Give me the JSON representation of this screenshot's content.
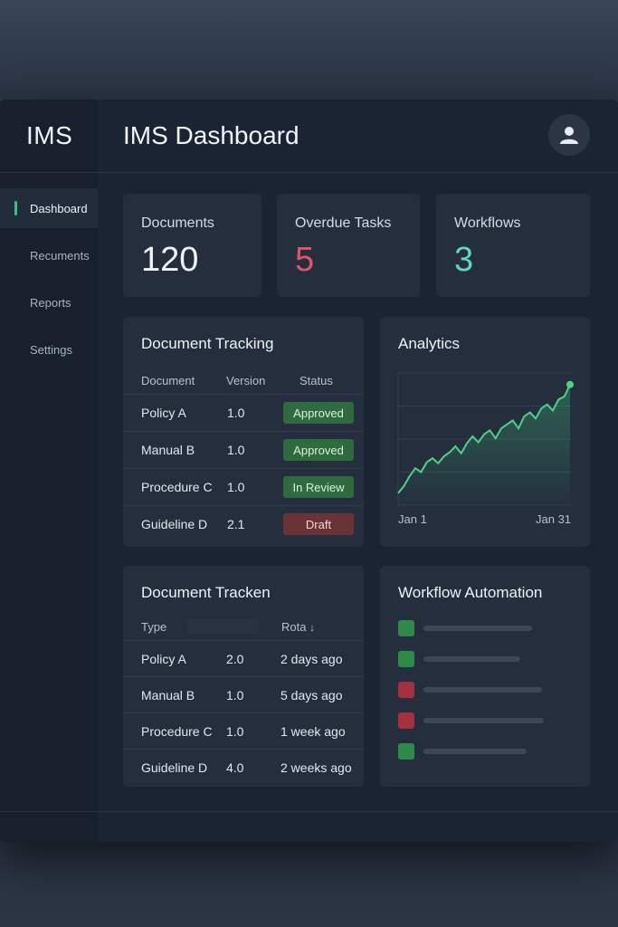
{
  "app": {
    "brand": "IMS",
    "title": "IMS Dashboard"
  },
  "icons": {
    "avatar": "user-icon",
    "sort": "arrow-down-icon"
  },
  "sidebar": {
    "items": [
      {
        "label": "Dashboard",
        "active": true
      },
      {
        "label": "Recuments",
        "active": false
      },
      {
        "label": "Reports",
        "active": false
      },
      {
        "label": "Settings",
        "active": false
      }
    ]
  },
  "stats": [
    {
      "label": "Documents",
      "value": "120",
      "color": "#f2f5f9"
    },
    {
      "label": "Overdue Tasks",
      "value": "5",
      "color": "#e0556a"
    },
    {
      "label": "Workflows",
      "value": "3",
      "color": "#5fd6c0"
    }
  ],
  "tracking": {
    "title": "Document Tracking",
    "columns": [
      "Document",
      "Version",
      "Status"
    ],
    "rows": [
      {
        "document": "Policy A",
        "version": "1.0",
        "status": "Approved",
        "status_color": "#2f6b3f",
        "status_text": "#d9f2df"
      },
      {
        "document": "Manual B",
        "version": "1.0",
        "status": "Approved",
        "status_color": "#2f6b3f",
        "status_text": "#d9f2df"
      },
      {
        "document": "Procedure C",
        "version": "1.0",
        "status": "In Review",
        "status_color": "#2f6b3f",
        "status_text": "#d9f2df"
      },
      {
        "document": "Guideline D",
        "version": "2.1",
        "status": "Draft",
        "status_color": "#6a3336",
        "status_text": "#f1d6d8"
      }
    ]
  },
  "analytics": {
    "title": "Analytics",
    "x_start": "Jan 1",
    "x_end": "Jan 31",
    "line_color": "#4fd18a"
  },
  "chart_data": {
    "type": "area",
    "title": "Analytics",
    "x_range": [
      "Jan 1",
      "Jan 31"
    ],
    "x": [
      1,
      2,
      3,
      4,
      5,
      6,
      7,
      8,
      9,
      10,
      11,
      12,
      13,
      14,
      15,
      16,
      17,
      18,
      19,
      20,
      21,
      22,
      23,
      24,
      25,
      26,
      27,
      28,
      29,
      30,
      31
    ],
    "values": [
      3,
      10,
      20,
      28,
      24,
      34,
      38,
      33,
      40,
      44,
      50,
      43,
      53,
      60,
      54,
      62,
      66,
      58,
      68,
      72,
      76,
      68,
      80,
      84,
      78,
      88,
      92,
      86,
      97,
      100,
      112
    ],
    "grid": true,
    "legend": "none"
  },
  "tracken": {
    "title": "Document Tracken",
    "columns": [
      "Type",
      "Rota"
    ],
    "rows": [
      {
        "document": "Policy A",
        "version": "2.0",
        "when": "2 days ago"
      },
      {
        "document": "Manual B",
        "version": "1.0",
        "when": "5 days ago"
      },
      {
        "document": "Procedure C",
        "version": "1.0",
        "when": "1 week ago"
      },
      {
        "document": "Guideline D",
        "version": "4.0",
        "when": "2 weeks ago"
      }
    ]
  },
  "workflow": {
    "title": "Workflow Automation",
    "items": [
      {
        "color": "#2f8a4a",
        "bar": 0.75
      },
      {
        "color": "#2f8a4a",
        "bar": 0.67
      },
      {
        "color": "#a53040",
        "bar": 0.82
      },
      {
        "color": "#a53040",
        "bar": 0.83
      },
      {
        "color": "#2f8a4a",
        "bar": 0.71
      }
    ]
  }
}
